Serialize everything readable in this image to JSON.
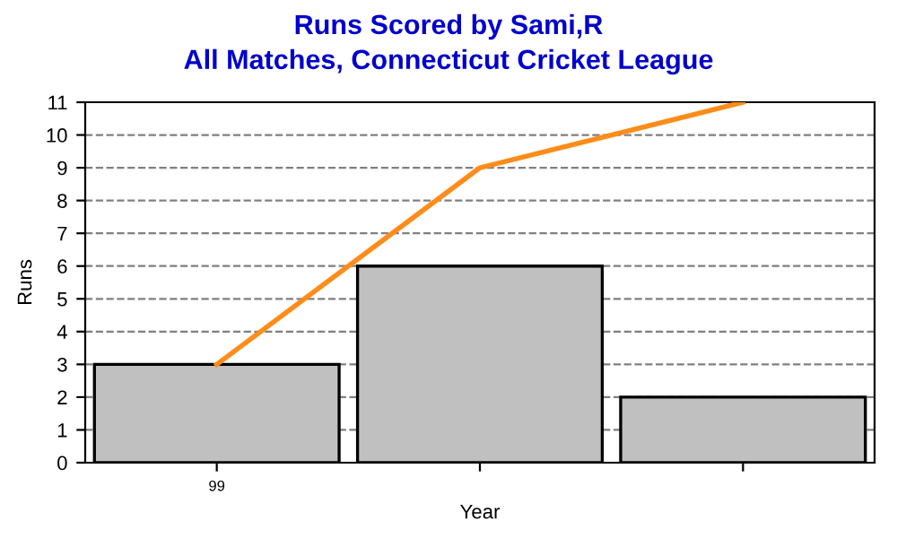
{
  "chart_data": {
    "type": "bar",
    "title": "Runs Scored by Sami,R",
    "subtitle": "All Matches, Connecticut Cricket League",
    "xlabel": "Year",
    "ylabel": "Runs",
    "categories": [
      "99",
      null,
      null
    ],
    "series": [
      {
        "color": "#c0c0c0",
        "values": [
          3,
          6,
          2
        ]
      },
      {
        "type": "line",
        "color": "#ff8c1a",
        "values": [
          3,
          9,
          11
        ]
      }
    ],
    "ylim": [
      0,
      11
    ],
    "yticks": [
      0,
      1,
      2,
      3,
      4,
      5,
      6,
      7,
      8,
      9,
      10,
      11
    ],
    "grid": "y",
    "line_style": "solid",
    "marker": "none"
  }
}
